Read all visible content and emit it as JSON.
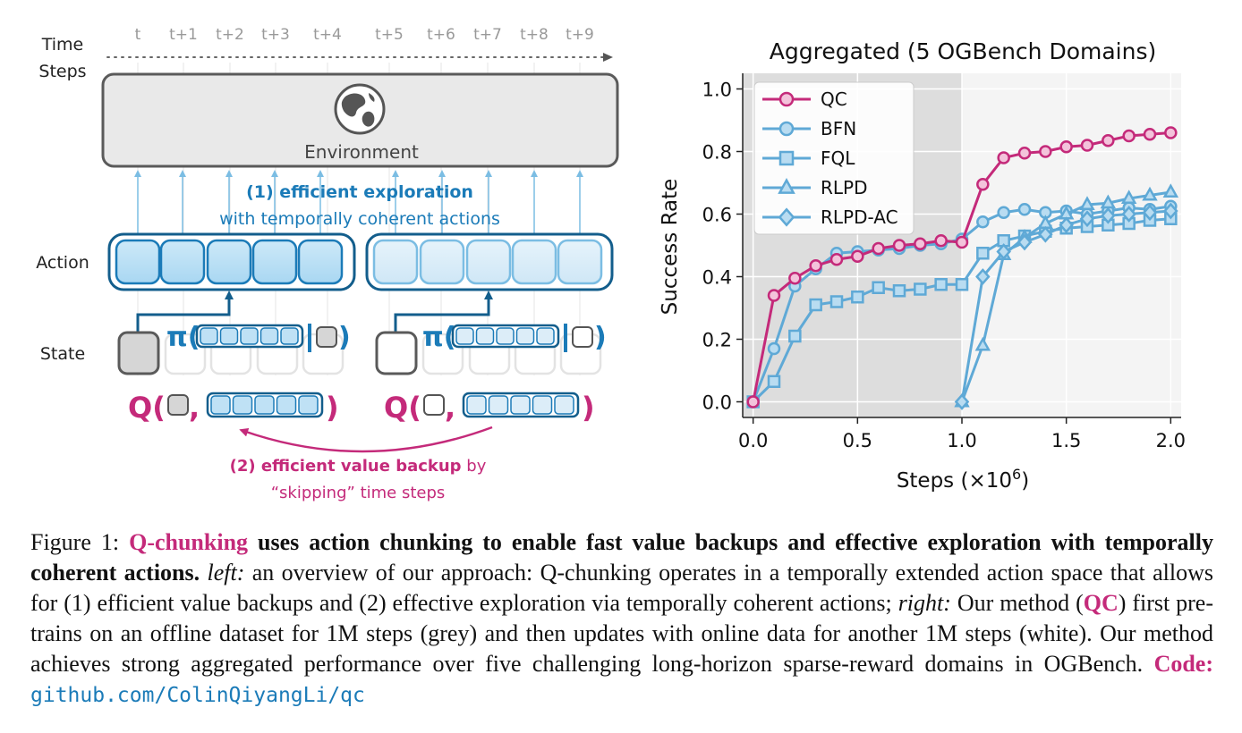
{
  "diagram": {
    "time_label_line1": "Time",
    "time_label_line2": "Steps",
    "time_steps": [
      "t",
      "t+1",
      "t+2",
      "t+3",
      "t+4",
      "t+5",
      "t+6",
      "t+7",
      "t+8",
      "t+9"
    ],
    "environment_label": "Environment",
    "exploration_title": "(1) efficient exploration",
    "exploration_sub": "with temporally coherent actions",
    "action_label": "Action",
    "state_label": "State",
    "pi_symbol": "π(",
    "pi_close": ")",
    "q_symbol": "Q(",
    "q_comma": ",",
    "q_close": ")",
    "backup_title": "(2) efficient value backup",
    "backup_by": " by",
    "backup_sub": "“skipping” time steps"
  },
  "chart_data": {
    "type": "line",
    "title": "Aggregated (5 OGBench Domains)",
    "xlabel": "Steps (×10",
    "xlabel_sup": "6",
    "xlabel_close": ")",
    "ylabel": "Success Rate",
    "xlim": [
      -0.05,
      2.05
    ],
    "ylim": [
      -0.05,
      1.05
    ],
    "xticks": [
      0.0,
      0.5,
      1.0,
      1.5,
      2.0
    ],
    "xtick_labels": [
      "0.0",
      "0.5",
      "1.0",
      "1.5",
      "2.0"
    ],
    "yticks": [
      0.0,
      0.2,
      0.4,
      0.6,
      0.8,
      1.0
    ],
    "ytick_labels": [
      "0.0",
      "0.2",
      "0.4",
      "0.6",
      "0.8",
      "1.0"
    ],
    "offline_region": [
      0.0,
      1.0
    ],
    "legend_position": "top-left",
    "series": [
      {
        "name": "QC",
        "color": "#c42a7a",
        "marker": "circle",
        "x": [
          0,
          0.1,
          0.2,
          0.3,
          0.4,
          0.5,
          0.6,
          0.7,
          0.8,
          0.9,
          1.0,
          1.1,
          1.2,
          1.3,
          1.4,
          1.5,
          1.6,
          1.7,
          1.8,
          1.9,
          2.0
        ],
        "y": [
          0.0,
          0.34,
          0.395,
          0.435,
          0.455,
          0.465,
          0.49,
          0.5,
          0.505,
          0.515,
          0.51,
          0.695,
          0.78,
          0.795,
          0.8,
          0.815,
          0.82,
          0.835,
          0.85,
          0.855,
          0.86
        ]
      },
      {
        "name": "BFN",
        "color": "#5fa9d6",
        "marker": "circle",
        "x": [
          0,
          0.1,
          0.2,
          0.3,
          0.4,
          0.5,
          0.6,
          0.7,
          0.8,
          0.9,
          1.0,
          1.1,
          1.2,
          1.3,
          1.4,
          1.5,
          1.6,
          1.7,
          1.8,
          1.9,
          2.0
        ],
        "y": [
          0.0,
          0.17,
          0.37,
          0.425,
          0.475,
          0.48,
          0.485,
          0.49,
          0.5,
          0.505,
          0.52,
          0.575,
          0.605,
          0.615,
          0.605,
          0.61,
          0.6,
          0.61,
          0.62,
          0.615,
          0.625
        ]
      },
      {
        "name": "FQL",
        "color": "#5fa9d6",
        "marker": "square",
        "x": [
          0,
          0.1,
          0.2,
          0.3,
          0.4,
          0.5,
          0.6,
          0.7,
          0.8,
          0.9,
          1.0,
          1.1,
          1.2,
          1.3,
          1.4,
          1.5,
          1.6,
          1.7,
          1.8,
          1.9,
          2.0
        ],
        "y": [
          0.0,
          0.065,
          0.21,
          0.31,
          0.32,
          0.335,
          0.365,
          0.355,
          0.36,
          0.375,
          0.375,
          0.475,
          0.515,
          0.53,
          0.545,
          0.555,
          0.56,
          0.565,
          0.57,
          0.58,
          0.585
        ]
      },
      {
        "name": "RLPD",
        "color": "#5fa9d6",
        "marker": "triangle",
        "x": [
          1.0,
          1.1,
          1.2,
          1.3,
          1.4,
          1.5,
          1.6,
          1.7,
          1.8,
          1.9,
          2.0
        ],
        "y": [
          0.0,
          0.18,
          0.47,
          0.525,
          0.57,
          0.6,
          0.63,
          0.635,
          0.65,
          0.66,
          0.67
        ]
      },
      {
        "name": "RLPD-AC",
        "color": "#5fa9d6",
        "marker": "diamond",
        "x": [
          1.0,
          1.1,
          1.2,
          1.3,
          1.4,
          1.5,
          1.6,
          1.7,
          1.8,
          1.9,
          2.0
        ],
        "y": [
          0.0,
          0.4,
          0.48,
          0.51,
          0.535,
          0.565,
          0.585,
          0.595,
          0.6,
          0.605,
          0.61
        ]
      }
    ]
  },
  "caption": {
    "fig": "Figure 1: ",
    "method": "Q-chunking",
    "bold_rest": " uses action chunking to enable fast value backups and effective exploration with temporally coherent actions.",
    "left_label": "left:",
    "left_text": " an overview of our approach: Q-chunking operates in a temporally extended action space that allows for (1) efficient value backups and (2) effective exploration via temporally coherent actions; ",
    "right_label": "right:",
    "right_text1": " Our method (",
    "qc": "QC",
    "right_text2": ") first pre-trains on an offline dataset for 1M steps (grey) and then updates with online data for another 1M steps (white). Our method achieves strong aggregated performance over five challenging long-horizon sparse-reward domains in OGBench. ",
    "code_label": "Code:",
    "code_url": "github.com/ColinQiyangLi/qc"
  }
}
